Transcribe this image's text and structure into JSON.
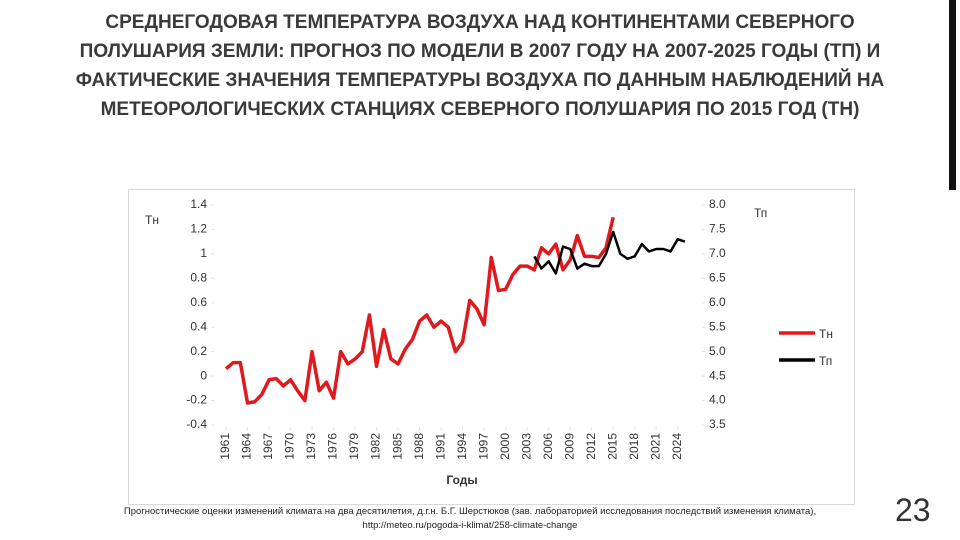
{
  "title": "СРЕДНЕГОДОВАЯ ТЕМПЕРАТУРА ВОЗДУХА НАД КОНТИНЕНТАМИ СЕВЕРНОГО ПОЛУШАРИЯ ЗЕМЛИ: ПРОГНОЗ ПО МОДЕЛИ В 2007 ГОДУ НА 2007-2025 ГОДЫ (ТП) И ФАКТИЧЕСКИЕ ЗНАЧЕНИЯ ТЕМПЕРАТУРЫ ВОЗДУХА ПО ДАННЫМ НАБЛЮДЕНИЙ НА МЕТЕОРОЛОГИЧЕСКИХ СТАНЦИЯХ СЕВЕРНОГО ПОЛУШАРИЯ ПО 2015 ГОД (ТН)",
  "footnote": [
    "Прогностические оценки изменений климата на два десятилетия, д.г.н. Б.Г. Шерстюков (зав. лабораторией исследования последствий изменения климата),",
    "http://meteo.ru/pogoda-i-klimat/258-climate-change"
  ],
  "page_number": "23",
  "chart_data": {
    "type": "line",
    "x_label": "Годы",
    "y_label": "Тн",
    "y2_label": "Тп",
    "x": [
      1961,
      1962,
      1963,
      1964,
      1965,
      1966,
      1967,
      1968,
      1969,
      1970,
      1971,
      1972,
      1973,
      1974,
      1975,
      1976,
      1977,
      1978,
      1979,
      1980,
      1981,
      1982,
      1983,
      1984,
      1985,
      1986,
      1987,
      1988,
      1989,
      1990,
      1991,
      1992,
      1993,
      1994,
      1995,
      1996,
      1997,
      1998,
      1999,
      2000,
      2001,
      2002,
      2003,
      2004,
      2005,
      2006,
      2007,
      2008,
      2009,
      2010,
      2011,
      2012,
      2013,
      2014,
      2015,
      2016,
      2017,
      2018,
      2019,
      2020,
      2021,
      2022,
      2023,
      2024,
      2025
    ],
    "xlim": [
      1960,
      2026
    ],
    "xticks": [
      1961,
      1964,
      1967,
      1970,
      1973,
      1976,
      1979,
      1982,
      1985,
      1988,
      1991,
      1994,
      1997,
      2000,
      2003,
      2006,
      2009,
      2012,
      2015,
      2018,
      2021,
      2024
    ],
    "ylim": [
      -0.4,
      1.4
    ],
    "yticks": [
      -0.4,
      -0.2,
      0,
      0.2,
      0.4,
      0.6,
      0.8,
      1,
      1.2,
      1.4
    ],
    "y2lim": [
      3.5,
      8.0
    ],
    "y2ticks": [
      3.5,
      {
        "value": 4.0,
        "label": "4.0"
      },
      4.5,
      {
        "value": 5.0,
        "label": "5.0"
      },
      5.5,
      {
        "value": 6.0,
        "label": "6.0"
      },
      6.5,
      {
        "value": 7.0,
        "label": "7.0"
      },
      7.5,
      {
        "value": 8.0,
        "label": "8.0"
      }
    ],
    "grid": false,
    "legend": "right",
    "series": [
      {
        "name": "Тн",
        "color": "#e0191e",
        "values": [
          0.06,
          0.11,
          0.11,
          -0.22,
          -0.21,
          -0.15,
          -0.03,
          -0.02,
          -0.08,
          -0.03,
          -0.12,
          -0.2,
          0.2,
          -0.12,
          -0.05,
          -0.18,
          0.2,
          0.1,
          0.14,
          0.2,
          0.5,
          0.08,
          0.38,
          0.14,
          0.1,
          0.22,
          0.3,
          0.45,
          0.5,
          0.4,
          0.45,
          0.4,
          0.2,
          0.28,
          0.62,
          0.55,
          0.42,
          0.97,
          0.7,
          0.71,
          0.83,
          0.9,
          0.9,
          0.87,
          1.05,
          1.0,
          1.08,
          0.87,
          0.95,
          1.15,
          0.98,
          0.98,
          0.97,
          1.05,
          1.3,
          null,
          null,
          null,
          null,
          null,
          null,
          null,
          null,
          null,
          null
        ]
      },
      {
        "name": "Тп",
        "color": "#000000",
        "axis": "y2",
        "values": [
          null,
          null,
          null,
          null,
          null,
          null,
          null,
          null,
          null,
          null,
          null,
          null,
          null,
          null,
          null,
          null,
          null,
          null,
          null,
          null,
          null,
          null,
          null,
          null,
          null,
          null,
          null,
          null,
          null,
          null,
          null,
          null,
          null,
          null,
          null,
          null,
          null,
          null,
          null,
          null,
          null,
          null,
          null,
          6.95,
          6.7,
          6.85,
          6.6,
          7.15,
          7.1,
          6.7,
          6.8,
          6.75,
          6.75,
          7.0,
          7.45,
          7.0,
          6.9,
          6.95,
          7.2,
          7.05,
          7.1,
          7.1,
          7.05,
          7.3,
          7.25
        ]
      }
    ]
  }
}
